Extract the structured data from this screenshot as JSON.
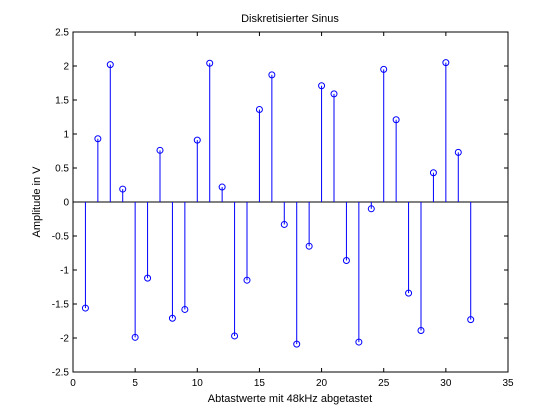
{
  "chart_data": {
    "type": "stem",
    "title": "Diskretisierter Sinus",
    "xlabel": "Abtastwerte mit 48kHz abgetastet",
    "ylabel": "Amplitude in V",
    "xlim": [
      0,
      35
    ],
    "ylim": [
      -2.5,
      2.5
    ],
    "xticks": [
      0,
      5,
      10,
      15,
      20,
      25,
      30,
      35
    ],
    "yticks": [
      -2.5,
      -2,
      -1.5,
      -1,
      -0.5,
      0,
      0.5,
      1,
      1.5,
      2,
      2.5
    ],
    "xtick_labels": [
      "0",
      "5",
      "10",
      "15",
      "20",
      "25",
      "30",
      "35"
    ],
    "ytick_labels": [
      "-2.5",
      "-2",
      "-1.5",
      "-1",
      "-0.5",
      "0",
      "0.5",
      "1",
      "1.5",
      "2",
      "2.5"
    ],
    "grid": false,
    "series_color": "#0000ff",
    "x": [
      1,
      2,
      3,
      4,
      5,
      6,
      7,
      8,
      9,
      10,
      11,
      12,
      13,
      14,
      15,
      16,
      17,
      18,
      19,
      20,
      21,
      22,
      23,
      24,
      25,
      26,
      27,
      28,
      29,
      30,
      31,
      32
    ],
    "values": [
      -1.56,
      0.93,
      2.02,
      0.19,
      -1.99,
      -1.12,
      0.76,
      -1.71,
      -1.58,
      0.91,
      2.04,
      0.22,
      -1.97,
      -1.15,
      1.36,
      1.87,
      -0.33,
      -2.09,
      -0.65,
      1.71,
      1.59,
      -0.86,
      -2.06,
      -0.1,
      1.95,
      1.21,
      -1.34,
      -1.89,
      0.43,
      2.05,
      0.73,
      -1.73
    ]
  }
}
